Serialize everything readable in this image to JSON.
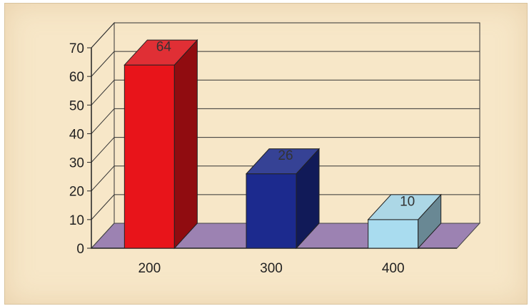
{
  "chart_data": {
    "type": "bar",
    "title": "",
    "xlabel": "",
    "ylabel": "",
    "categories": [
      "200",
      "300",
      "400"
    ],
    "values": [
      64,
      26,
      10
    ],
    "data_labels": [
      "64",
      "26",
      "10"
    ],
    "ylim": [
      0,
      70
    ],
    "yticks": [
      "0",
      "10",
      "20",
      "30",
      "40",
      "50",
      "60",
      "70"
    ],
    "style": "3d-column",
    "grid": true,
    "legend": "none",
    "colors": {
      "bars": [
        "#e8141a",
        "#1c2a8e",
        "#a9dcef"
      ],
      "floor": "#9c82b2",
      "panel": "#f7e7c8"
    }
  }
}
